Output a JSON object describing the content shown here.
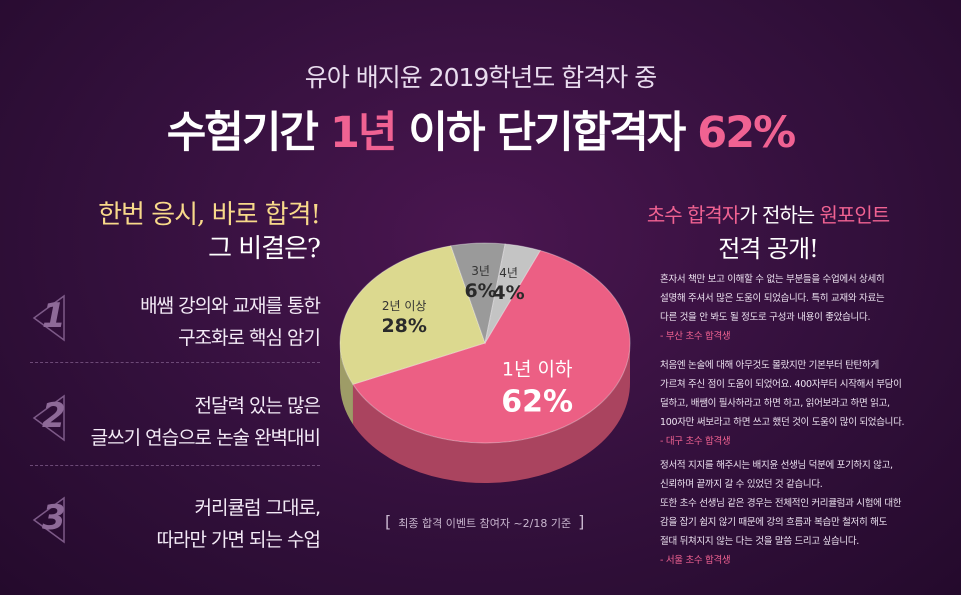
{
  "header": {
    "subtitle": "유아 배지윤 2019학년도 합격자 중",
    "headline_prefix": "수험기간 ",
    "headline_highlight1": "1년",
    "headline_middle": " 이하 단기합격자 ",
    "headline_highlight2": "62%"
  },
  "left": {
    "title_line1": "한번 응시, 바로 합격!",
    "title_line2": "그 비결은?",
    "steps": [
      {
        "num": "1",
        "line1": "배쌤 강의와 교재를 통한",
        "line2": "구조화로 핵심 암기"
      },
      {
        "num": "2",
        "line1": "전달력 있는  많은",
        "line2": "글쓰기 연습으로 논술 완벽대비"
      },
      {
        "num": "3",
        "line1": "커리큘럼 그대로,",
        "line2": "따라만 가면 되는 수업"
      }
    ]
  },
  "chart_data": {
    "type": "pie",
    "title": "",
    "slices": [
      {
        "label": "1년 이하",
        "value": 62,
        "display": "62%",
        "color": "#ec5f84"
      },
      {
        "label": "2년 이상",
        "value": 28,
        "display": "28%",
        "color": "#dcd98f"
      },
      {
        "label": "3년",
        "value": 6,
        "display": "6%",
        "color": "#9a9a9a"
      },
      {
        "label": "4년",
        "value": 4,
        "display": "4%",
        "color": "#c4c4c4"
      }
    ],
    "note_open": "[",
    "note": "최종 합격 이벤트 참여자 ~2/18 기준",
    "note_close": "]"
  },
  "right": {
    "title_pink1": "초수 합격자",
    "title_white": "가 전하는 ",
    "title_pink2": "원포인트",
    "title_line2": "전격 공개!",
    "testimonials": [
      {
        "lines": [
          "혼자서 책만 보고 이해할 수 없는 부분들을 수업에서 상세히",
          "설명해 주셔서 많은 도움이 되었습니다. 특히 교재와 자료는",
          "다른 것을 안 봐도 될 정도로 구성과 내용이 좋았습니다."
        ],
        "author": "- 부산 초수 합격생"
      },
      {
        "lines": [
          "처음엔 논술에 대해 아무것도 몰랐지만 기본부터 탄탄하게",
          "가르쳐 주신 점이 도움이 되었어요. 400자부터 시작해서 부담이",
          "덜하고, 배쌤이 필사하라고 하면 하고,  읽어보라고 하면 읽고,",
          "100자만 써보라고 하면 쓰고 했던 것이 도움이 많이 되었습니다."
        ],
        "author": "- 대구 초수 합격생"
      },
      {
        "lines": [
          "정서적 지지를 해주시는 배지윤 선생님 덕분에 포기하지 않고,",
          "신뢰하며 끝까지 갈 수 있었던 것 같습니다.",
          "또한 초수 선생님 같은 경우는 전체적인 커리큘럼과 시험에 대한",
          "감을 잡기 쉽지 않기 때문에 강의 흐름과 복습만 철저히 해도",
          "절대 뒤쳐지지 않는 다는 것을 말씀 드리고 싶습니다."
        ],
        "author": "- 서울 초수 합격생"
      }
    ]
  }
}
